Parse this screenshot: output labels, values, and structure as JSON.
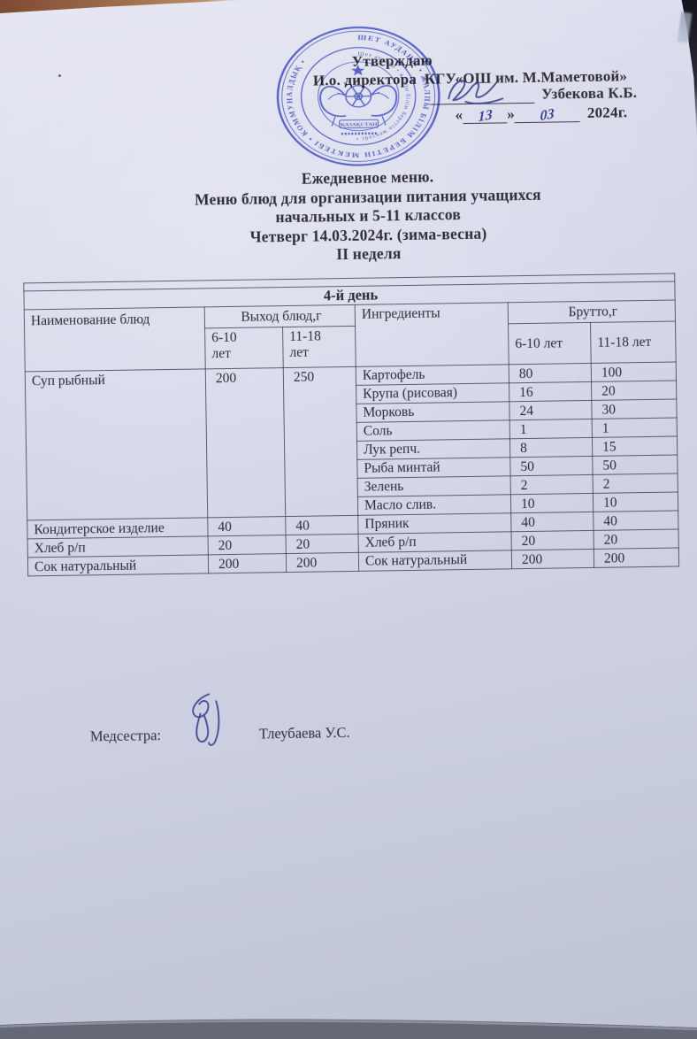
{
  "colors": {
    "paper": "#d2d5e7",
    "stamp_blue": "#4c59c4",
    "ink_blue": "#3a418f",
    "text": "#2f3039"
  },
  "approval": {
    "line1": "Утверждаю",
    "line2": "И.о. директора  КГУ«ОШ им. М.Маметовой»",
    "signer_name": "Узбекова К.Б.",
    "date_open": "«",
    "date_day": "13",
    "date_close": "»",
    "date_month": "03",
    "date_year": "2024г."
  },
  "stamp": {
    "ring_text_outer": "ШЕТ АУДАНЫ • ЖАЛПЫ БІЛІМ БЕРЕТІН МЕКТЕБІ • КОММУНАЛДЫҚ •",
    "ring_text_inner": "Шет ауданы • жалпы білім беретін мектебі •",
    "center_label": "ҚАЗАҚСТАН"
  },
  "title": {
    "lines": [
      "Ежедневное меню.",
      "Меню блюд для организации питания учащихся",
      "начальных и  5-11 классов",
      "Четверг 14.03.2024г. (зима-весна)",
      "II неделя"
    ]
  },
  "table": {
    "day_header": "4-й день",
    "headers": {
      "dish": "Наименование блюд",
      "output": "Выход блюд,г",
      "output_sub": [
        "6-10\nлет",
        "11-18\nлет"
      ],
      "ingredients": "Ингредиенты",
      "brutto": "Брутто,г",
      "brutto_sub": [
        "6-10 лет",
        "11-18 лет"
      ]
    },
    "dishes": [
      {
        "name": "Суп рыбный",
        "out_6_10": "200",
        "out_11_18": "250",
        "ingredients": [
          {
            "name": "Картофель",
            "g6": "80",
            "g11": "100"
          },
          {
            "name": "Крупа (рисовая)",
            "g6": "16",
            "g11": "20"
          },
          {
            "name": "Морковь",
            "g6": "24",
            "g11": "30"
          },
          {
            "name": "Соль",
            "g6": "1",
            "g11": "1"
          },
          {
            "name": "Лук репч.",
            "g6": "8",
            "g11": "15"
          },
          {
            "name": "Рыба минтай",
            "g6": "50",
            "g11": "50"
          },
          {
            "name": "Зелень",
            "g6": "2",
            "g11": "2"
          },
          {
            "name": "Масло слив.",
            "g6": "10",
            "g11": "10"
          }
        ]
      },
      {
        "name": "Кондитерское изделие",
        "out_6_10": "40",
        "out_11_18": "40",
        "ingredients": [
          {
            "name": "Пряник",
            "g6": "40",
            "g11": "40"
          }
        ]
      },
      {
        "name": "Хлеб р/п",
        "out_6_10": "20",
        "out_11_18": "20",
        "ingredients": [
          {
            "name": "Хлеб р/п",
            "g6": "20",
            "g11": "20"
          }
        ]
      },
      {
        "name": "Сок натуральный",
        "out_6_10": "200",
        "out_11_18": "200",
        "ingredients": [
          {
            "name": "Сок натуральный",
            "g6": "200",
            "g11": "200"
          }
        ]
      }
    ]
  },
  "footer": {
    "role_label": "Медсестра:",
    "nurse_name": "Тлеубаева У.С."
  }
}
